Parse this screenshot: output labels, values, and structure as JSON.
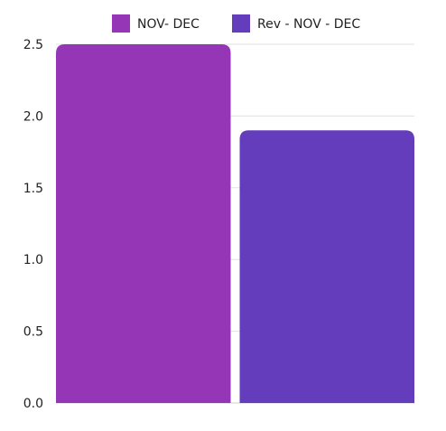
{
  "chart_data": {
    "type": "bar",
    "categories": [
      ""
    ],
    "series": [
      {
        "name": "NOV- DEC",
        "values": [
          2.5
        ],
        "color": "#9536B6"
      },
      {
        "name": "Rev - NOV - DEC",
        "values": [
          1.9
        ],
        "color": "#633DBB"
      }
    ],
    "ylim": [
      0,
      2.5
    ],
    "yticks": [
      "0.0",
      "0.5",
      "1.0",
      "1.5",
      "2.0",
      "2.5"
    ],
    "grid": true,
    "legend": "top-center"
  }
}
